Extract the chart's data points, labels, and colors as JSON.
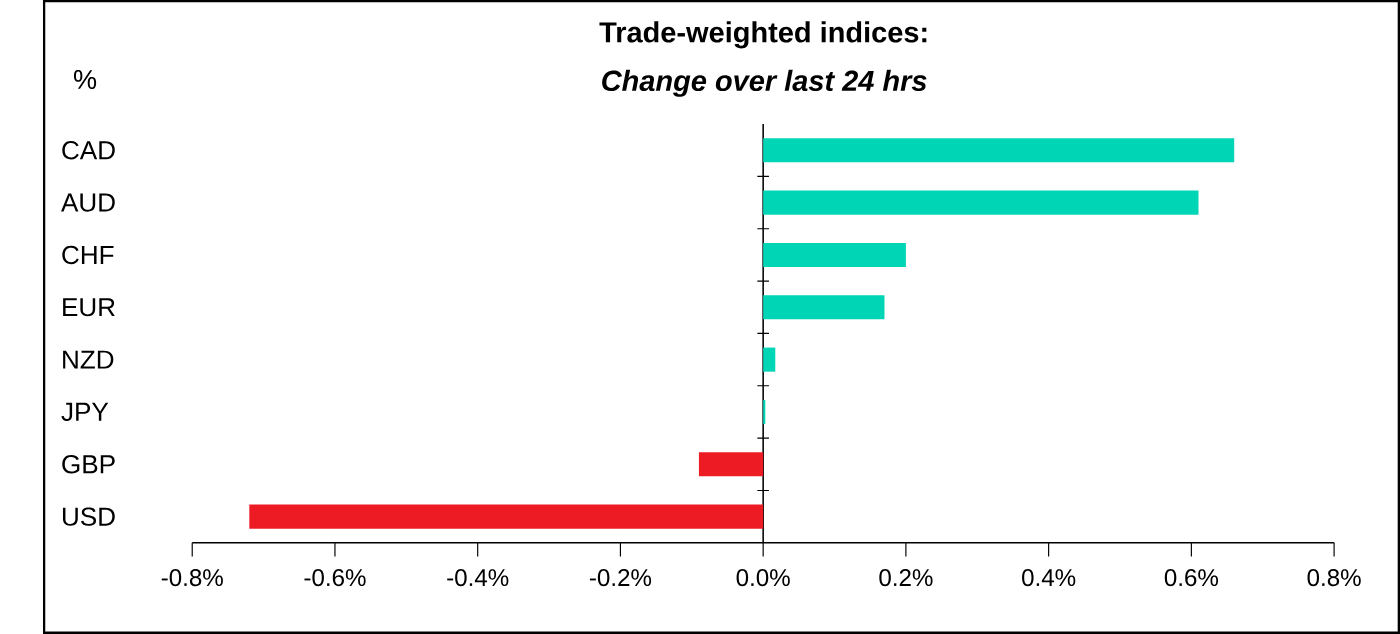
{
  "chart_data": {
    "type": "bar",
    "orientation": "horizontal",
    "title": "Trade-weighted indices:",
    "subtitle": "Change over last 24 hrs",
    "annotations": [
      "%"
    ],
    "categories": [
      "CAD",
      "AUD",
      "CHF",
      "EUR",
      "NZD",
      "JPY",
      "GBP",
      "USD"
    ],
    "values": [
      0.66,
      0.61,
      0.2,
      0.17,
      0.017,
      0.003,
      -0.09,
      -0.72
    ],
    "colors": [
      "#00d5b6",
      "#00d5b6",
      "#00d5b6",
      "#00d5b6",
      "#00d5b6",
      "#00d5b6",
      "#ed1c24",
      "#ed1c24"
    ],
    "xlim": [
      -0.8,
      0.8
    ],
    "xticks": [
      {
        "value": -0.8,
        "label": "-0.8%"
      },
      {
        "value": -0.6,
        "label": "-0.6%"
      },
      {
        "value": -0.4,
        "label": "-0.4%"
      },
      {
        "value": -0.2,
        "label": "-0.2%"
      },
      {
        "value": 0,
        "label": "0.0%"
      },
      {
        "value": 0.2,
        "label": "0.2%"
      },
      {
        "value": 0.4,
        "label": "0.4%"
      },
      {
        "value": 0.6,
        "label": "0.6%"
      },
      {
        "value": 0.8,
        "label": "0.8%"
      }
    ]
  }
}
